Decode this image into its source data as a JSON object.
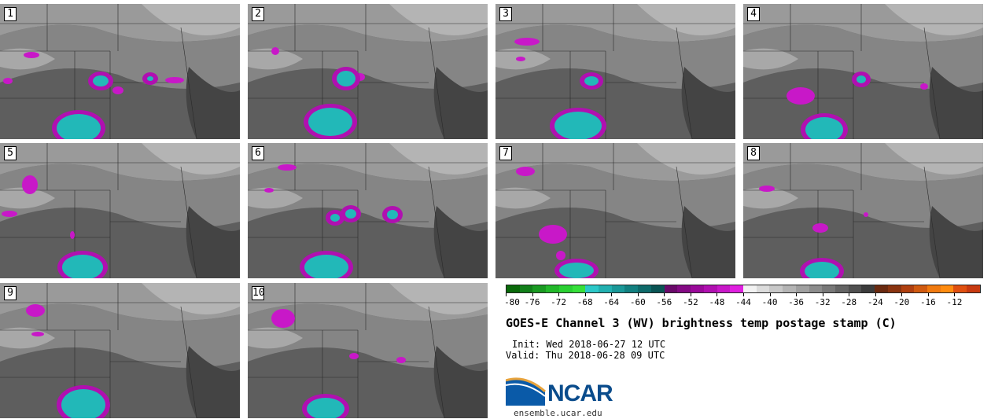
{
  "panels": [
    {
      "label": "1"
    },
    {
      "label": "2"
    },
    {
      "label": "3"
    },
    {
      "label": "4"
    },
    {
      "label": "5"
    },
    {
      "label": "6"
    },
    {
      "label": "7"
    },
    {
      "label": "8"
    },
    {
      "label": "9"
    },
    {
      "label": "10"
    }
  ],
  "colorbar": {
    "tick_labels": [
      "-80",
      "-76",
      "-72",
      "-68",
      "-64",
      "-60",
      "-56",
      "-52",
      "-48",
      "-44",
      "-40",
      "-36",
      "-32",
      "-28",
      "-24",
      "-20",
      "-16",
      "-12"
    ],
    "colors": [
      "#0a6a0a",
      "#12801a",
      "#1a9a22",
      "#22b82a",
      "#2ad032",
      "#36e03a",
      "#2cc8c8",
      "#22b0b0",
      "#1a9898",
      "#128080",
      "#0e6a6a",
      "#0a5454",
      "#6a0a6a",
      "#840a84",
      "#9a0a9a",
      "#b010b0",
      "#c818c8",
      "#e020e0",
      "#f2f2f2",
      "#dcdcdc",
      "#c8c8c8",
      "#b4b4b4",
      "#a0a0a0",
      "#8c8c8c",
      "#787878",
      "#646464",
      "#505050",
      "#3c3c3c",
      "#6a2a10",
      "#8a3410",
      "#b04010",
      "#d05a10",
      "#f07a10",
      "#ff8c10",
      "#e05010",
      "#c83a10"
    ]
  },
  "title": "GOES-E Channel 3 (WV) brightness temp postage stamp (C)",
  "init": "Init: Wed 2018-06-27 12 UTC",
  "valid": "Valid: Thu 2018-06-28 09 UTC",
  "logo": {
    "text": "NCAR",
    "url": "ensemble.ucar.edu"
  }
}
